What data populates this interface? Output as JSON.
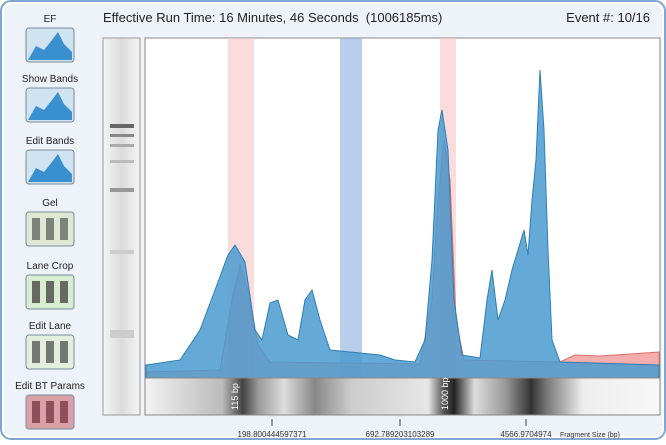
{
  "header": {
    "title": "Effective Run Time: 16 Minutes, 46 Seconds  (1006185ms)",
    "event": "Event #: 10/16"
  },
  "sidebar": {
    "buttons": [
      "EF",
      "Show Bands",
      "Edit Bands",
      "Gel",
      "Lane Crop",
      "Edit Lane",
      "Edit BT Params"
    ]
  },
  "plot": {
    "band_labels": [
      "115 bp",
      "1000 bp"
    ],
    "x_ticks": [
      "198.800444597371",
      "692.789203103289",
      "4566.9704974"
    ],
    "x_label": "Fragment Size (bp)"
  }
}
